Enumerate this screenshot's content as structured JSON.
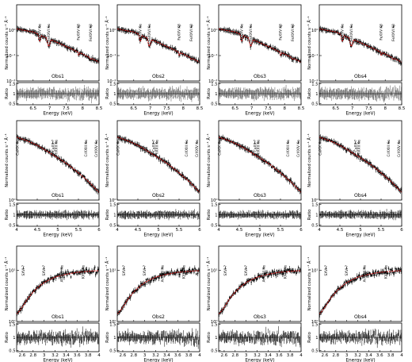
{
  "figure": {
    "colors": {
      "data": "#000000",
      "model": "#d62020",
      "ratio_line": "#000000",
      "ratio_data": "#555555",
      "marker": "#000000"
    }
  },
  "chart_data": [
    {
      "type": "scatter",
      "panel_row": 1,
      "ylabel": "Normalized counts s⁻¹ Å⁻¹",
      "ratio_ylabel": "Ratio",
      "xlabel": "Energy (keV)",
      "xlim": [
        6,
        8.5
      ],
      "ylim": [
        0.01,
        10
      ],
      "yscale": "log",
      "yticks": [
        "10⁻²",
        "10⁻¹",
        "10⁰"
      ],
      "ratio_ylim": [
        0.45,
        1.55
      ],
      "ratio_yticks": [
        "0.5",
        "1",
        "1.5"
      ],
      "xticks": [
        "6.5",
        "7",
        "7.5",
        "8",
        "8.5"
      ],
      "lines": [
        {
          "label": "FeXXV Kα",
          "energy": 6.7
        },
        {
          "label": "FeXXVI Kα",
          "energy": 6.97
        },
        {
          "label": "FeXXV Kβ",
          "energy": 7.88
        },
        {
          "label": "FeXXVI Kβ",
          "energy": 8.25
        }
      ],
      "observations": [
        "Obs1",
        "Obs2",
        "Obs3",
        "Obs4"
      ],
      "model_x": [
        5.9,
        6.2,
        6.5,
        6.65,
        6.7,
        6.75,
        6.9,
        6.97,
        7.05,
        7.3,
        7.6,
        7.85,
        7.88,
        7.92,
        8.2,
        8.25,
        8.3,
        8.5
      ],
      "model_y": [
        1.2,
        1.0,
        0.85,
        0.7,
        0.35,
        0.6,
        0.5,
        0.22,
        0.42,
        0.3,
        0.2,
        0.14,
        0.1,
        0.13,
        0.085,
        0.07,
        0.075,
        0.055
      ]
    },
    {
      "type": "scatter",
      "panel_row": 2,
      "ylabel": "Normalized counts s⁻¹ Å⁻¹",
      "ratio_ylabel": "Ratio",
      "xlabel": "Energy (keV)",
      "xlim": [
        4,
        6
      ],
      "ylim": [
        1,
        10
      ],
      "yscale": "log",
      "yticks": [
        "10⁰"
      ],
      "ratio_ylim": [
        0.45,
        1.55
      ],
      "ratio_yticks": [
        "0.5",
        "1",
        "1.5"
      ],
      "xticks": [
        "4",
        "4.5",
        "5",
        "5.5",
        "6"
      ],
      "lines": [
        {
          "label": "CaXIX Kα",
          "energy": 3.9
        },
        {
          "label": "CaXX ?",
          "energy": 4.88
        },
        {
          "label": "TiXXII Kα",
          "energy": 4.96
        },
        {
          "label": "CrXXIII Kα",
          "energy": 5.68
        },
        {
          "label": "CrXXIV Kα",
          "energy": 5.93
        }
      ],
      "observations": [
        "Obs1",
        "Obs2",
        "Obs3",
        "Obs4"
      ],
      "model_x": [
        3.85,
        4.0,
        4.25,
        4.5,
        4.75,
        5.0,
        5.25,
        5.5,
        5.75,
        6.0
      ],
      "model_y": [
        6.5,
        6.2,
        5.6,
        4.9,
        4.1,
        3.4,
        2.8,
        2.2,
        1.7,
        1.25
      ]
    },
    {
      "type": "scatter",
      "panel_row": 3,
      "ylabel": "Normalized counts s⁻¹ Å⁻¹",
      "ratio_ylabel": "Ratio",
      "xlabel": "Energy (keV)",
      "xlim": [
        2.5,
        4
      ],
      "ylim": [
        1,
        30
      ],
      "yscale": "log",
      "yticks": [
        "10⁰",
        "10¹"
      ],
      "ratio_ylim": [
        0.45,
        1.55
      ],
      "ratio_yticks": [
        "0.5",
        "1",
        "1.5"
      ],
      "xticks": [
        "2.6",
        "2.8",
        "3",
        "3.2",
        "3.4",
        "3.6",
        "3.8",
        "4"
      ],
      "lines": [
        {
          "label": "SXVI ?",
          "energy": 2.62
        },
        {
          "label": "SXVI ?",
          "energy": 3.0
        },
        {
          "label": "ArXVIII Kα",
          "energy": 3.32
        },
        {
          "label": "KXIX Kα",
          "energy": 3.71
        }
      ],
      "observations": [
        "Obs1",
        "Obs2",
        "Obs3",
        "Obs4"
      ],
      "model_x": [
        2.5,
        2.55,
        2.6,
        2.65,
        2.7,
        2.8,
        2.9,
        3.0,
        3.1,
        3.2,
        3.3,
        3.4,
        3.5,
        3.6,
        3.7,
        3.8,
        3.9,
        4.0
      ],
      "model_y": [
        1.4,
        1.6,
        1.9,
        2.3,
        2.8,
        3.8,
        4.8,
        5.8,
        6.6,
        7.4,
        7.9,
        8.4,
        8.8,
        9.2,
        9.4,
        9.6,
        9.8,
        9.9
      ]
    }
  ]
}
